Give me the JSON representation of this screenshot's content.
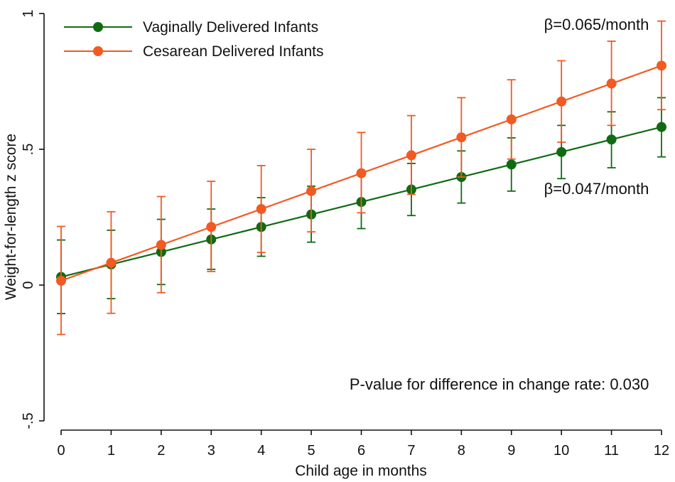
{
  "chart_data": {
    "type": "line",
    "title": "",
    "xlabel": "Child age in months",
    "ylabel": "Weight-for-length z score",
    "x": [
      0,
      1,
      2,
      3,
      4,
      5,
      6,
      7,
      8,
      9,
      10,
      11,
      12
    ],
    "xticks": [
      "0",
      "1",
      "2",
      "3",
      "4",
      "5",
      "6",
      "7",
      "8",
      "9",
      "10",
      "11",
      "12"
    ],
    "xlim": [
      0,
      12
    ],
    "ylim": [
      -0.5,
      1
    ],
    "yticks": [
      {
        "value": -0.5,
        "label": "-.5"
      },
      {
        "value": 0,
        "label": "0"
      },
      {
        "value": 0.5,
        "label": ".5"
      },
      {
        "value": 1,
        "label": "1"
      }
    ],
    "grid": false,
    "legend_position": "top-left",
    "series": [
      {
        "name": "Vaginally Delivered Infants",
        "color": "#0f6b12",
        "values": [
          0.03,
          0.076,
          0.122,
          0.168,
          0.214,
          0.26,
          0.306,
          0.352,
          0.398,
          0.444,
          0.49,
          0.536,
          0.582
        ],
        "lower": [
          -0.105,
          -0.05,
          0.002,
          0.058,
          0.106,
          0.158,
          0.208,
          0.256,
          0.302,
          0.346,
          0.392,
          0.432,
          0.472
        ],
        "upper": [
          0.166,
          0.202,
          0.242,
          0.28,
          0.322,
          0.364,
          0.404,
          0.448,
          0.494,
          0.542,
          0.588,
          0.638,
          0.69
        ]
      },
      {
        "name": "Cesarean Delivered Infants",
        "color": "#f15a22",
        "values": [
          0.016,
          0.082,
          0.148,
          0.214,
          0.28,
          0.346,
          0.412,
          0.478,
          0.544,
          0.61,
          0.676,
          0.742,
          0.808
        ],
        "lower": [
          -0.182,
          -0.104,
          -0.028,
          0.05,
          0.12,
          0.196,
          0.266,
          0.334,
          0.398,
          0.464,
          0.526,
          0.588,
          0.646
        ],
        "upper": [
          0.216,
          0.27,
          0.326,
          0.382,
          0.44,
          0.5,
          0.562,
          0.624,
          0.69,
          0.756,
          0.826,
          0.898,
          0.972
        ]
      }
    ],
    "annotations": [
      {
        "text": "β=0.065/month",
        "x": 11.75,
        "y": 0.94
      },
      {
        "text": "β=0.047/month",
        "x": 11.75,
        "y": 0.335
      },
      {
        "text": "P-value for difference in change rate: 0.030",
        "x": 11.75,
        "y": -0.385
      }
    ]
  }
}
